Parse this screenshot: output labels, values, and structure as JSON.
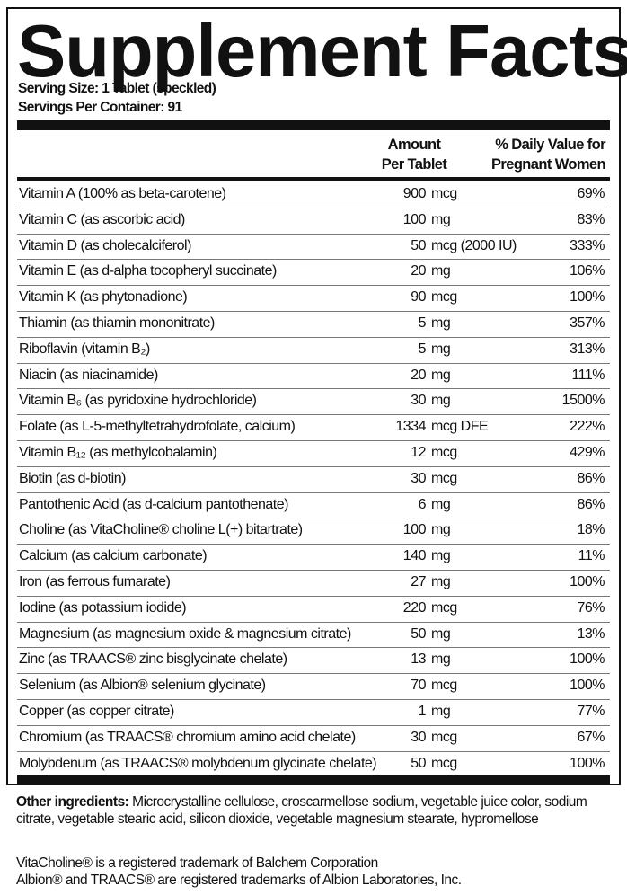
{
  "title": "Supplement Facts",
  "serving_size": "Serving Size: 1 Tablet (speckled)",
  "servings_per_container": "Servings Per Container: 91",
  "headers": {
    "amount_line1": "Amount",
    "amount_line2": "Per Tablet",
    "dv_line1": "% Daily Value for",
    "dv_line2": "Pregnant Women"
  },
  "rows": [
    {
      "name": "Vitamin A (100% as beta-carotene)",
      "amount": "900",
      "unit": "mcg",
      "dv": "69%"
    },
    {
      "name": "Vitamin C (as ascorbic acid)",
      "amount": "100",
      "unit": "mg",
      "dv": "83%"
    },
    {
      "name": "Vitamin D (as cholecalciferol)",
      "amount": "50",
      "unit": "mcg (2000 IU)",
      "dv": "333%"
    },
    {
      "name": "Vitamin E (as d-alpha tocopheryl succinate)",
      "amount": "20",
      "unit": "mg",
      "dv": "106%"
    },
    {
      "name": "Vitamin K (as phytonadione)",
      "amount": "90",
      "unit": "mcg",
      "dv": "100%"
    },
    {
      "name": "Thiamin (as thiamin mononitrate)",
      "amount": "5",
      "unit": "mg",
      "dv": "357%"
    },
    {
      "name": "Riboflavin (vitamin B₂)",
      "amount": "5",
      "unit": "mg",
      "dv": "313%"
    },
    {
      "name": "Niacin (as niacinamide)",
      "amount": "20",
      "unit": "mg",
      "dv": "111%"
    },
    {
      "name": "Vitamin B₆ (as pyridoxine hydrochloride)",
      "amount": "30",
      "unit": "mg",
      "dv": "1500%"
    },
    {
      "name": "Folate (as L-5-methyltetrahydrofolate, calcium)",
      "amount": "1334",
      "unit": "mcg DFE",
      "dv": "222%"
    },
    {
      "name": "Vitamin B₁₂ (as methylcobalamin)",
      "amount": "12",
      "unit": "mcg",
      "dv": "429%"
    },
    {
      "name": "Biotin (as d-biotin)",
      "amount": "30",
      "unit": "mcg",
      "dv": "86%"
    },
    {
      "name": "Pantothenic Acid (as d-calcium pantothenate)",
      "amount": "6",
      "unit": "mg",
      "dv": "86%"
    },
    {
      "name": "Choline (as VitaCholine® choline L(+) bitartrate)",
      "amount": "100",
      "unit": "mg",
      "dv": "18%"
    },
    {
      "name": "Calcium (as calcium carbonate)",
      "amount": "140",
      "unit": "mg",
      "dv": "11%"
    },
    {
      "name": "Iron (as ferrous fumarate)",
      "amount": "27",
      "unit": "mg",
      "dv": "100%"
    },
    {
      "name": "Iodine (as potassium iodide)",
      "amount": "220",
      "unit": "mcg",
      "dv": "76%"
    },
    {
      "name": "Magnesium (as magnesium oxide & magnesium citrate)",
      "amount": "50",
      "unit": "mg",
      "dv": "13%"
    },
    {
      "name": "Zinc (as TRAACS® zinc bisglycinate chelate)",
      "amount": "13",
      "unit": "mg",
      "dv": "100%"
    },
    {
      "name": "Selenium (as Albion® selenium glycinate)",
      "amount": "70",
      "unit": "mcg",
      "dv": "100%"
    },
    {
      "name": "Copper (as copper citrate)",
      "amount": "1",
      "unit": "mg",
      "dv": "77%"
    },
    {
      "name": "Chromium (as TRAACS® chromium amino acid chelate)",
      "amount": "30",
      "unit": "mcg",
      "dv": "67%"
    },
    {
      "name": "Molybdenum (as TRAACS® molybdenum glycinate chelate)",
      "amount": "50",
      "unit": "mcg",
      "dv": "100%"
    }
  ],
  "other_ingredients": {
    "label": "Other ingredients:",
    "text": " Microcrystalline cellulose, croscarmellose sodium, vegetable juice color, sodium citrate, vegetable stearic acid, silicon dioxide, vegetable magnesium stearate, hypromellose"
  },
  "trademarks": [
    "VitaCholine® is a registered trademark of Balchem Corporation",
    "Albion® and TRAACS® are registered trademarks of Albion Laboratories, Inc."
  ]
}
